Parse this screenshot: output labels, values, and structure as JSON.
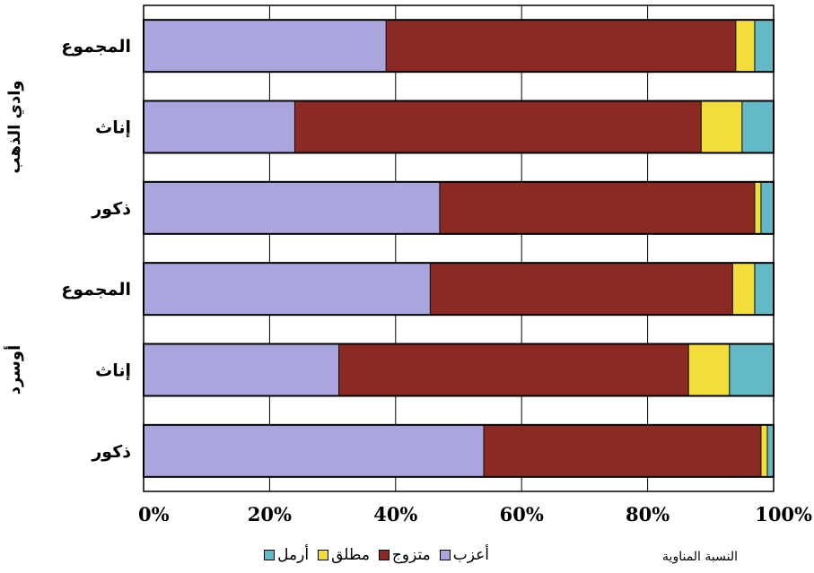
{
  "chart_data": {
    "type": "bar",
    "orientation": "horizontal",
    "stacked": true,
    "percent": true,
    "x_ticks": [
      "0%",
      "20%",
      "40%",
      "60%",
      "80%",
      "100%"
    ],
    "xlim": [
      0,
      100
    ],
    "xlabel": "النسبة المناوية",
    "grid": "vertical",
    "categories": [
      {
        "label": "المجموع",
        "group": "وادي الذهب"
      },
      {
        "label": "إناث",
        "group": "وادي الذهب"
      },
      {
        "label": "ذكور",
        "group": "وادي الذهب"
      },
      {
        "label": "المجموع",
        "group": "أوسرد"
      },
      {
        "label": "إناث",
        "group": "أوسرد"
      },
      {
        "label": "ذكور",
        "group": "أوسرد"
      }
    ],
    "groups": [
      "وادي الذهب",
      "أوسرد"
    ],
    "series": [
      {
        "name": "أعزب",
        "color": "#aaa6dd",
        "values": [
          38.5,
          24.0,
          47.0,
          45.5,
          31.0,
          54.0
        ]
      },
      {
        "name": "متزوج",
        "color": "#8b2a23",
        "values": [
          55.5,
          64.5,
          50.0,
          48.0,
          55.5,
          44.0
        ]
      },
      {
        "name": "مطلق",
        "color": "#f2dd3a",
        "values": [
          3.0,
          6.5,
          1.0,
          3.5,
          6.5,
          1.0
        ]
      },
      {
        "name": "أرمل",
        "color": "#63b9c6",
        "values": [
          3.0,
          5.0,
          2.0,
          3.0,
          7.0,
          1.0
        ]
      }
    ],
    "legend_position": "bottom"
  }
}
